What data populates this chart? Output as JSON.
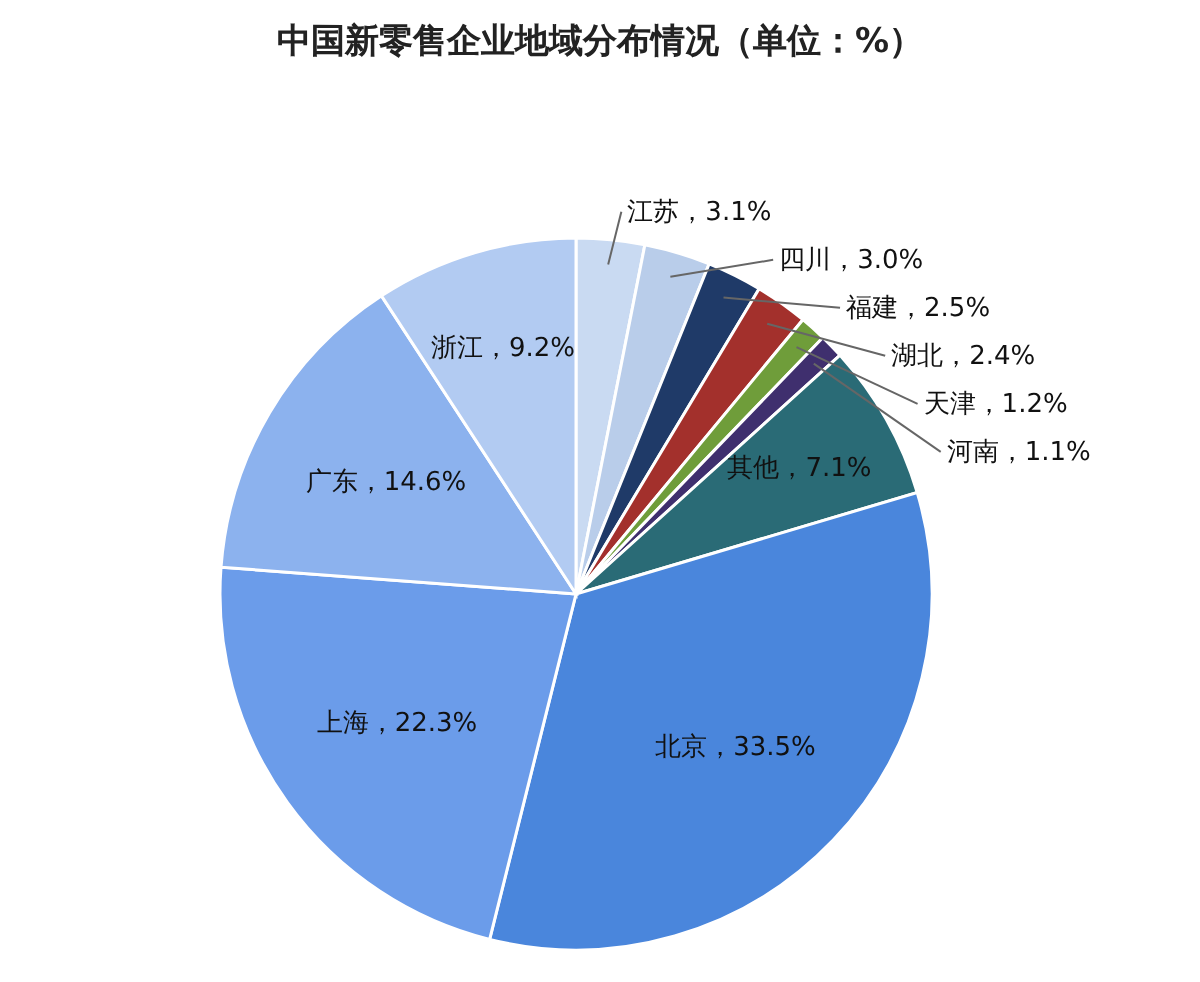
{
  "chart_data": {
    "type": "pie",
    "title": "中国新零售企业地域分布情况（单位：%）",
    "categories": [
      "江苏",
      "四川",
      "福建",
      "湖北",
      "天津",
      "河南",
      "其他",
      "北京",
      "上海",
      "广东",
      "浙江"
    ],
    "values": [
      3.1,
      3.0,
      2.5,
      2.4,
      1.2,
      1.1,
      7.1,
      33.5,
      22.3,
      14.6,
      9.2
    ],
    "value_labels": [
      "3.1%",
      "3.0%",
      "2.5%",
      "2.4%",
      "1.2%",
      "1.1%",
      "7.1%",
      "33.5%",
      "22.3%",
      "14.6%",
      "9.2%"
    ],
    "colors": [
      "#c9daf2",
      "#b9cdea",
      "#1f3a68",
      "#a3302c",
      "#6f9d3a",
      "#3f2f6e",
      "#2a6b76",
      "#4a86dc",
      "#6b9cea",
      "#8cb2ee",
      "#b2cbf2"
    ]
  }
}
